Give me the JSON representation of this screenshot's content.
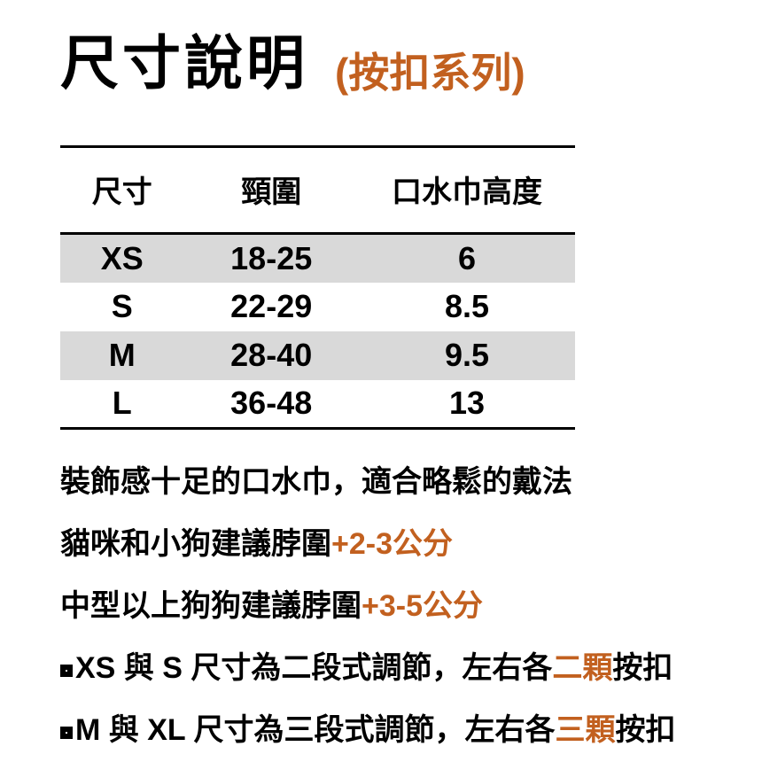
{
  "colors": {
    "accent": "#C2601F",
    "table_row_shade": "#D9D9D9",
    "text": "#000000",
    "background": "#FFFFFF"
  },
  "header": {
    "title": "尺寸說明",
    "subtitle": "(按扣系列)"
  },
  "table": {
    "columns": [
      "尺寸",
      "頸圍",
      "口水巾高度"
    ],
    "rows": [
      {
        "size": "XS",
        "neck_cm": "18-25",
        "bib_height_cm": "6"
      },
      {
        "size": "S",
        "neck_cm": "22-29",
        "bib_height_cm": "8.5"
      },
      {
        "size": "M",
        "neck_cm": "28-40",
        "bib_height_cm": "9.5"
      },
      {
        "size": "L",
        "neck_cm": "36-48",
        "bib_height_cm": "13"
      }
    ]
  },
  "notes": {
    "fit": "裝飾感十足的口水巾，適合略鬆的戴法",
    "small_pets": {
      "text": "貓咪和小狗建議脖圍",
      "highlight": "+2-3公分"
    },
    "medium_pets": {
      "text": "中型以上狗狗建議脖圍",
      "highlight": "+3-5公分"
    },
    "xs_s": {
      "text1": "XS 與 S 尺寸為二段式調節，左右各",
      "highlight": "二顆",
      "text2": "按扣"
    },
    "m_xl": {
      "text1": "M 與 XL 尺寸為三段式調節，左右各",
      "highlight": "三顆",
      "text2": "按扣"
    }
  }
}
